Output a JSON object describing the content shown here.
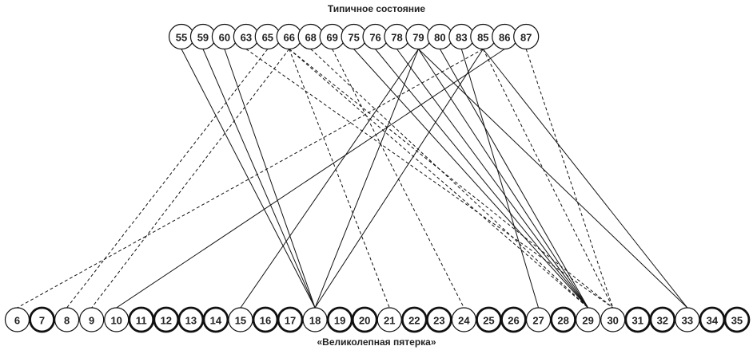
{
  "titles": {
    "top": "Типичное состояние",
    "bottom": "«Великолепная пятерка»"
  },
  "top_nodes": [
    "55",
    "59",
    "60",
    "63",
    "65",
    "66",
    "68",
    "69",
    "75",
    "76",
    "78",
    "79",
    "80",
    "83",
    "85",
    "86",
    "87"
  ],
  "bottom_nodes": [
    {
      "label": "6",
      "bold": false
    },
    {
      "label": "7",
      "bold": true
    },
    {
      "label": "8",
      "bold": false
    },
    {
      "label": "9",
      "bold": false
    },
    {
      "label": "10",
      "bold": false
    },
    {
      "label": "11",
      "bold": true
    },
    {
      "label": "12",
      "bold": true
    },
    {
      "label": "13",
      "bold": true
    },
    {
      "label": "14",
      "bold": true
    },
    {
      "label": "15",
      "bold": false
    },
    {
      "label": "16",
      "bold": true
    },
    {
      "label": "17",
      "bold": true
    },
    {
      "label": "18",
      "bold": false
    },
    {
      "label": "19",
      "bold": true
    },
    {
      "label": "20",
      "bold": true
    },
    {
      "label": "21",
      "bold": false
    },
    {
      "label": "22",
      "bold": true
    },
    {
      "label": "23",
      "bold": true
    },
    {
      "label": "24",
      "bold": false
    },
    {
      "label": "25",
      "bold": true
    },
    {
      "label": "26",
      "bold": true
    },
    {
      "label": "27",
      "bold": false
    },
    {
      "label": "28",
      "bold": true
    },
    {
      "label": "29",
      "bold": false
    },
    {
      "label": "30",
      "bold": false
    },
    {
      "label": "31",
      "bold": true
    },
    {
      "label": "32",
      "bold": true
    },
    {
      "label": "33",
      "bold": false
    },
    {
      "label": "34",
      "bold": true
    },
    {
      "label": "35",
      "bold": true
    }
  ],
  "edges": [
    {
      "from": "55",
      "to": "18",
      "style": "solid"
    },
    {
      "from": "59",
      "to": "18",
      "style": "solid"
    },
    {
      "from": "60",
      "to": "18",
      "style": "solid"
    },
    {
      "from": "63",
      "to": "30",
      "style": "dashed"
    },
    {
      "from": "65",
      "to": "8",
      "style": "dashed"
    },
    {
      "from": "66",
      "to": "9",
      "style": "dashed"
    },
    {
      "from": "66",
      "to": "21",
      "style": "dashed"
    },
    {
      "from": "66",
      "to": "29",
      "style": "dashed"
    },
    {
      "from": "66",
      "to": "30",
      "style": "dashed"
    },
    {
      "from": "68",
      "to": "29",
      "style": "dashed"
    },
    {
      "from": "69",
      "to": "24",
      "style": "dashed"
    },
    {
      "from": "75",
      "to": "29",
      "style": "solid"
    },
    {
      "from": "76",
      "to": "29",
      "style": "solid"
    },
    {
      "from": "78",
      "to": "29",
      "style": "solid"
    },
    {
      "from": "79",
      "to": "15",
      "style": "solid"
    },
    {
      "from": "79",
      "to": "18",
      "style": "solid"
    },
    {
      "from": "79",
      "to": "29",
      "style": "solid"
    },
    {
      "from": "79",
      "to": "33",
      "style": "solid"
    },
    {
      "from": "80",
      "to": "29",
      "style": "solid"
    },
    {
      "from": "83",
      "to": "27",
      "style": "solid"
    },
    {
      "from": "85",
      "to": "6",
      "style": "dashed"
    },
    {
      "from": "85",
      "to": "18",
      "style": "solid"
    },
    {
      "from": "85",
      "to": "30",
      "style": "dashed"
    },
    {
      "from": "85",
      "to": "33",
      "style": "solid"
    },
    {
      "from": "86",
      "to": "10",
      "style": "solid"
    },
    {
      "from": "87",
      "to": "30",
      "style": "dashed"
    }
  ]
}
